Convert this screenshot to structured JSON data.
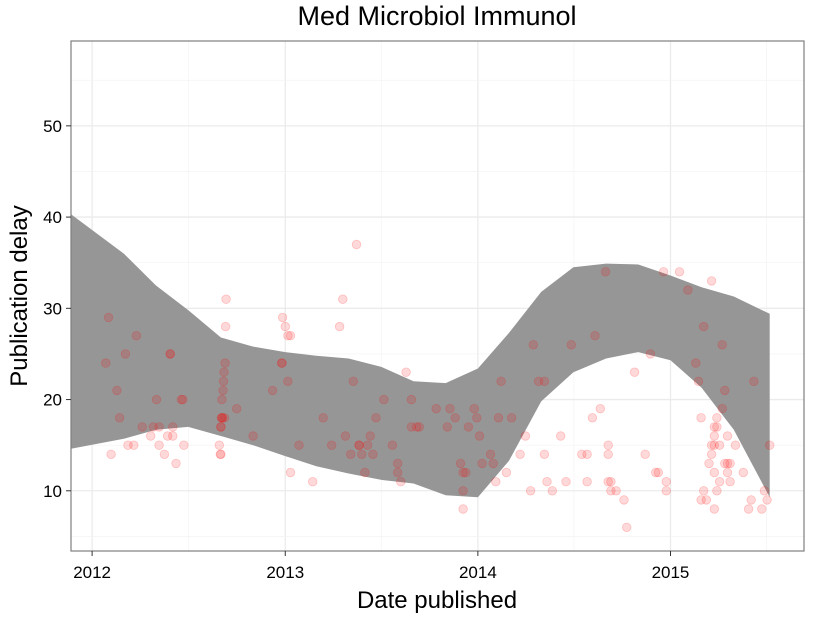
{
  "chart_data": {
    "type": "scatter",
    "title": "Med Microbiol Immunol",
    "xlabel": "Date published",
    "ylabel": "Publication delay",
    "x_ticks": [
      "2012",
      "2013",
      "2014",
      "2015"
    ],
    "y_ticks": [
      "10",
      "20",
      "30",
      "40",
      "50"
    ],
    "xlim": [
      "2011-11-22",
      "2015-09-11"
    ],
    "ylim": [
      3.4,
      59.3
    ],
    "grid": true,
    "legend": "none",
    "colors": {
      "points": "#ff0000",
      "band": "#969696",
      "panel_border": "#7f7f7f",
      "grid": "#ebebeb"
    },
    "series": [
      {
        "x": [
          "2012-01-27",
          "2012-02-01",
          "2012-02-06",
          "2012-02-17",
          "2012-02-22",
          "2012-03-04",
          "2012-03-09",
          "2012-03-20",
          "2012-03-25",
          "2012-04-05",
          "2012-04-21",
          "2012-04-26",
          "2012-05-02",
          "2012-05-07",
          "2012-05-07",
          "2012-05-17",
          "2012-05-23",
          "2012-05-28",
          "2012-05-28",
          "2012-06-02",
          "2012-06-02",
          "2012-06-08",
          "2012-06-18",
          "2012-06-21",
          "2012-06-23",
          "2012-08-29",
          "2012-08-31",
          "2012-09-01",
          "2012-09-01",
          "2012-09-01",
          "2012-09-02",
          "2012-09-03",
          "2012-09-03",
          "2012-09-04",
          "2012-09-05",
          "2012-09-06",
          "2012-09-07",
          "2012-09-08",
          "2012-09-09",
          "2012-09-10",
          "2012-09-11",
          "2012-10-01",
          "2012-11-01",
          "2012-12-08",
          "2012-12-25",
          "2012-12-26",
          "2012-12-27",
          "2013-01-01",
          "2013-01-06",
          "2013-01-06",
          "2013-01-11",
          "2013-01-11",
          "2013-01-27",
          "2013-02-22",
          "2013-03-14",
          "2013-03-30",
          "2013-04-14",
          "2013-04-20",
          "2013-04-25",
          "2013-05-05",
          "2013-05-10",
          "2013-05-16",
          "2013-05-21",
          "2013-05-21",
          "2013-05-26",
          "2013-06-01",
          "2013-06-06",
          "2013-06-11",
          "2013-06-16",
          "2013-06-22",
          "2013-07-07",
          "2013-07-23",
          "2013-08-02",
          "2013-08-02",
          "2013-08-08",
          "2013-08-18",
          "2013-08-28",
          "2013-08-28",
          "2013-09-07",
          "2013-09-12",
          "2013-10-14",
          "2013-11-04",
          "2013-11-09",
          "2013-11-19",
          "2013-11-29",
          "2013-12-04",
          "2013-12-04",
          "2013-12-04",
          "2013-12-09",
          "2013-12-14",
          "2013-12-25",
          "2013-12-30",
          "2014-01-04",
          "2014-01-09",
          "2014-01-25",
          "2014-01-30",
          "2014-02-04",
          "2014-02-09",
          "2014-02-14",
          "2014-02-24",
          "2014-03-06",
          "2014-03-22",
          "2014-04-01",
          "2014-04-11",
          "2014-04-16",
          "2014-04-26",
          "2014-05-07",
          "2014-05-07",
          "2014-05-12",
          "2014-05-22",
          "2014-06-07",
          "2014-06-17",
          "2014-06-27",
          "2014-07-17",
          "2014-07-27",
          "2014-07-27",
          "2014-08-06",
          "2014-08-11",
          "2014-08-21",
          "2014-08-31",
          "2014-09-05",
          "2014-09-05",
          "2014-09-05",
          "2014-09-10",
          "2014-09-10",
          "2014-09-20",
          "2014-10-05",
          "2014-10-10",
          "2014-10-25",
          "2014-11-14",
          "2014-11-24",
          "2014-12-04",
          "2014-12-09",
          "2014-12-19",
          "2014-12-24",
          "2014-12-24",
          "2015-01-18",
          "2015-02-03",
          "2015-02-18",
          "2015-02-23",
          "2015-02-28",
          "2015-02-28",
          "2015-03-05",
          "2015-03-05",
          "2015-03-10",
          "2015-03-15",
          "2015-03-20",
          "2015-03-20",
          "2015-03-20",
          "2015-03-25",
          "2015-03-25",
          "2015-03-25",
          "2015-03-25",
          "2015-03-25",
          "2015-03-30",
          "2015-03-30",
          "2015-03-30",
          "2015-04-04",
          "2015-04-04",
          "2015-04-09",
          "2015-04-09",
          "2015-04-14",
          "2015-04-14",
          "2015-04-19",
          "2015-04-19",
          "2015-04-19",
          "2015-04-24",
          "2015-04-24",
          "2015-05-04",
          "2015-05-19",
          "2015-05-29",
          "2015-06-03",
          "2015-06-08",
          "2015-06-23",
          "2015-06-28",
          "2015-07-03",
          "2015-07-08"
        ],
        "y": [
          24,
          29,
          14,
          21,
          18,
          25,
          15,
          15,
          27,
          17,
          16,
          17,
          20,
          15,
          17,
          14,
          16,
          25,
          25,
          17,
          16,
          13,
          20,
          20,
          15,
          15,
          14,
          14,
          17,
          17,
          18,
          20,
          18,
          18,
          21,
          22,
          23,
          18,
          24,
          28,
          31,
          19,
          16,
          21,
          24,
          24,
          29,
          28,
          27,
          22,
          27,
          12,
          15,
          11,
          18,
          15,
          28,
          31,
          16,
          14,
          22,
          37,
          15,
          15,
          14,
          12,
          15,
          16,
          14,
          18,
          20,
          15,
          12,
          13,
          11,
          23,
          20,
          17,
          17,
          17,
          19,
          17,
          19,
          18,
          13,
          12,
          10,
          8,
          12,
          17,
          19,
          18,
          16,
          13,
          14,
          13,
          11,
          18,
          22,
          12,
          18,
          14,
          16,
          10,
          26,
          22,
          22,
          14,
          11,
          10,
          16,
          11,
          26,
          14,
          11,
          14,
          18,
          27,
          19,
          34,
          14,
          15,
          11,
          10,
          11,
          10,
          9,
          6,
          23,
          14,
          25,
          12,
          12,
          34,
          11,
          10,
          34,
          32,
          24,
          22,
          18,
          9,
          10,
          28,
          9,
          13,
          33,
          15,
          14,
          16,
          8,
          12,
          15,
          17,
          17,
          18,
          10,
          15,
          11,
          26,
          19,
          13,
          21,
          12,
          13,
          16,
          13,
          11,
          15,
          12,
          8,
          9,
          22,
          8,
          10,
          9,
          15
        ]
      }
    ],
    "band": {
      "x": [
        "2011-11-22",
        "2012-03-01",
        "2012-05-01",
        "2012-07-01",
        "2012-09-01",
        "2012-11-01",
        "2013-01-01",
        "2013-03-01",
        "2013-05-01",
        "2013-07-01",
        "2013-09-01",
        "2013-11-01",
        "2014-01-01",
        "2014-03-01",
        "2014-05-01",
        "2014-07-01",
        "2014-09-01",
        "2014-11-01",
        "2015-01-01",
        "2015-03-01",
        "2015-05-01",
        "2015-07-08"
      ],
      "upper": [
        40.3,
        36,
        32.5,
        29.8,
        26.8,
        25.8,
        25.2,
        24.8,
        24.5,
        23.6,
        22,
        21.8,
        23.4,
        27.3,
        31.8,
        34.5,
        34.9,
        34.8,
        33.6,
        32.3,
        31.3,
        29.4
      ],
      "lower": [
        14.6,
        15.7,
        16.7,
        17,
        16,
        15,
        13.8,
        12.7,
        11.9,
        11.2,
        10.8,
        9.5,
        9.3,
        13.3,
        19.8,
        23,
        24.5,
        25.2,
        24.3,
        21.3,
        16.7,
        9.3
      ]
    }
  }
}
